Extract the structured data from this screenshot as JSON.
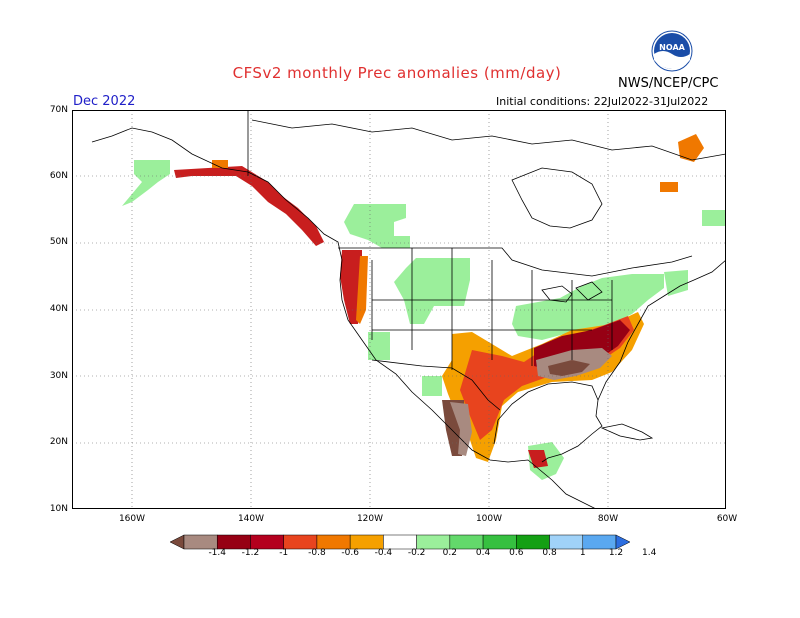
{
  "title": "CFSv2 monthly Prec anomalies (mm/day)",
  "agency": "NWS/NCEP/CPC",
  "logo_text": "NOAA",
  "target_month": "Dec 2022",
  "initial_conditions": "Initial conditions: 22Jul2022-31Jul2022",
  "lat_labels": [
    "70N",
    "60N",
    "50N",
    "40N",
    "30N",
    "20N",
    "10N"
  ],
  "lon_labels": [
    "160W",
    "140W",
    "120W",
    "100W",
    "80W",
    "60W"
  ],
  "colors": {
    "dry3": "#7a4a3c",
    "dry2": "#a88a80",
    "dry1": "#960014",
    "dry0": "#c81e1e",
    "dryA": "#e8441e",
    "dryB": "#f07800",
    "dryC": "#f5a000",
    "wet0": "#9bef9b",
    "wet1": "#63d96b",
    "wet2": "#36c040",
    "wet3": "#14a014",
    "wet4": "#a0d2f8",
    "wet5": "#5aa8f0",
    "wet6": "#2c6ee0"
  },
  "colorbar": {
    "labels": [
      "-1.4",
      "-1.2",
      "-1",
      "-0.8",
      "-0.6",
      "-0.4",
      "-0.2",
      "0.2",
      "0.4",
      "0.6",
      "0.8",
      "1",
      "1.2",
      "1.4"
    ],
    "colors": [
      "#7a4a3c",
      "#a88a80",
      "#960014",
      "#b4001e",
      "#e8441e",
      "#f07800",
      "#f5a000",
      "#ffffff",
      "#9bef9b",
      "#63d96b",
      "#36c040",
      "#14a014",
      "#a0d2f8",
      "#5aa8f0",
      "#2c6ee0"
    ]
  }
}
